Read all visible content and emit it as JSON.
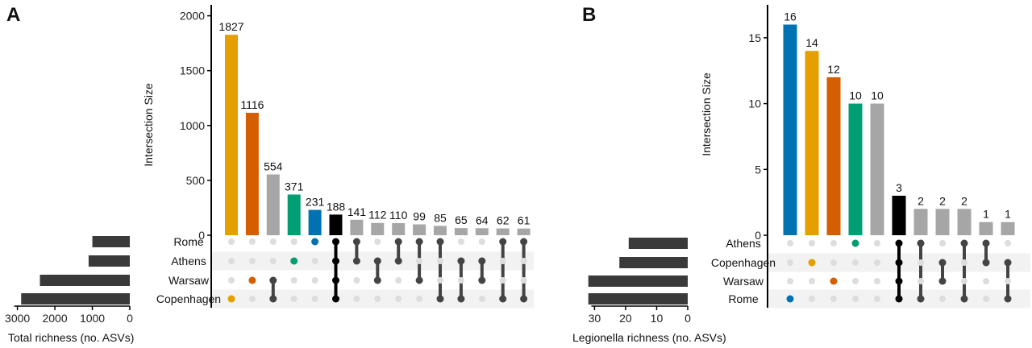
{
  "chart_data": [
    {
      "type": "bar",
      "subtype": "upset",
      "panel": "A",
      "ylabel": "Intersection Size",
      "ylim": [
        0,
        2100
      ],
      "yticks": [
        0,
        500,
        1000,
        1500,
        2000
      ],
      "sets": [
        "Rome",
        "Athens",
        "Warsaw",
        "Copenhagen"
      ],
      "set_size_label": "Total richness (no. ASVs)",
      "set_size_ticks": [
        3000,
        2000,
        1000,
        0
      ],
      "set_size_max": 3250,
      "set_sizes": [
        1000,
        1100,
        2400,
        2900
      ],
      "values": [
        1827,
        1116,
        554,
        371,
        231,
        188,
        141,
        112,
        110,
        99,
        85,
        65,
        64,
        62,
        61
      ],
      "membership": [
        [
          "Copenhagen"
        ],
        [
          "Warsaw"
        ],
        [
          "Warsaw",
          "Copenhagen"
        ],
        [
          "Athens"
        ],
        [
          "Rome"
        ],
        [
          "Rome",
          "Athens",
          "Warsaw",
          "Copenhagen"
        ],
        [
          "Rome",
          "Athens"
        ],
        [
          "Athens",
          "Warsaw"
        ],
        [
          "Rome",
          "Athens"
        ],
        [
          "Rome",
          "Warsaw"
        ],
        [
          "Rome",
          "Copenhagen"
        ],
        [
          "Athens",
          "Copenhagen"
        ],
        [
          "Athens",
          "Warsaw"
        ],
        [
          "Rome",
          "Copenhagen"
        ],
        [
          "Rome",
          "Copenhagen"
        ]
      ],
      "colors": [
        "#E69F00",
        "#D55E00",
        "#A6A6A6",
        "#009E73",
        "#0072B2",
        "#000000",
        "#A6A6A6",
        "#A6A6A6",
        "#A6A6A6",
        "#A6A6A6",
        "#A6A6A6",
        "#A6A6A6",
        "#A6A6A6",
        "#A6A6A6",
        "#A6A6A6"
      ],
      "dot_colors": [
        "#E69F00",
        "#D55E00",
        "#444444",
        "#009E73",
        "#0072B2",
        "#000000",
        "#444444",
        "#444444",
        "#444444",
        "#444444",
        "#444444",
        "#444444",
        "#444444",
        "#444444",
        "#444444"
      ]
    },
    {
      "type": "bar",
      "subtype": "upset",
      "panel": "B",
      "ylabel": "Intersection Size",
      "ylim": [
        0,
        17.5
      ],
      "yticks": [
        0,
        5,
        10,
        15
      ],
      "sets": [
        "Athens",
        "Copenhagen",
        "Warsaw",
        "Rome"
      ],
      "set_size_label": "Legionella richness (no. ASVs)",
      "set_size_ticks": [
        30,
        20,
        10,
        0
      ],
      "set_size_max": 34,
      "set_sizes": [
        19,
        22,
        32,
        32
      ],
      "values": [
        16,
        14,
        12,
        10,
        10,
        3,
        2,
        2,
        2,
        1,
        1
      ],
      "membership": [
        [
          "Rome"
        ],
        [
          "Copenhagen"
        ],
        [
          "Warsaw"
        ],
        [
          "Athens"
        ],
        [],
        [
          "Athens",
          "Copenhagen",
          "Warsaw",
          "Rome"
        ],
        [
          "Athens",
          "Rome"
        ],
        [
          "Copenhagen",
          "Warsaw"
        ],
        [
          "Athens",
          "Rome"
        ],
        [
          "Athens",
          "Copenhagen"
        ],
        [
          "Copenhagen",
          "Rome"
        ]
      ],
      "colors": [
        "#0072B2",
        "#E69F00",
        "#D55E00",
        "#009E73",
        "#A6A6A6",
        "#000000",
        "#A6A6A6",
        "#A6A6A6",
        "#A6A6A6",
        "#A6A6A6",
        "#A6A6A6"
      ],
      "dot_colors": [
        "#0072B2",
        "#E69F00",
        "#D55E00",
        "#009E73",
        "#444444",
        "#000000",
        "#444444",
        "#444444",
        "#444444",
        "#444444",
        "#444444"
      ]
    }
  ]
}
